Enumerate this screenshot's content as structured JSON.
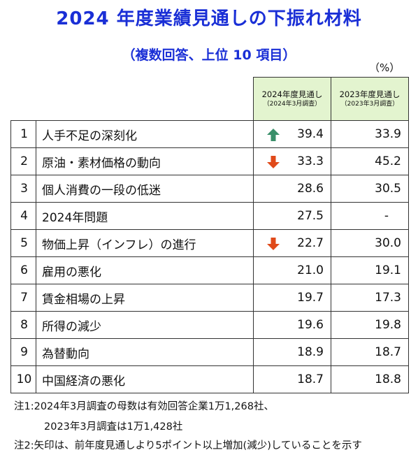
{
  "title": "2024 年度業績見通しの下振れ材料",
  "subtitle": "（複数回答、上位 10 項目）",
  "unit": "（%）",
  "colors": {
    "title": "#1a2fd6",
    "header_bg": "#e3f4cf",
    "up_arrow": "#3a8f6a",
    "down_arrow": "#e04a1a"
  },
  "chart_data": {
    "type": "table",
    "columns": [
      {
        "label": "2024年度見通し",
        "sub": "（2024年3月調査）"
      },
      {
        "label": "2023年度見通し",
        "sub": "（2023年3月調査）"
      }
    ],
    "rows": [
      {
        "rank": "1",
        "label": "人手不足の深刻化",
        "v2024": "39.4",
        "v2023": "33.9",
        "arrow": "up"
      },
      {
        "rank": "2",
        "label": "原油・素材価格の動向",
        "v2024": "33.3",
        "v2023": "45.2",
        "arrow": "down"
      },
      {
        "rank": "3",
        "label": "個人消費の一段の低迷",
        "v2024": "28.6",
        "v2023": "30.5",
        "arrow": ""
      },
      {
        "rank": "4",
        "label": "2024年問題",
        "v2024": "27.5",
        "v2023": "-",
        "arrow": ""
      },
      {
        "rank": "5",
        "label": "物価上昇（インフレ）の進行",
        "v2024": "22.7",
        "v2023": "30.0",
        "arrow": "down"
      },
      {
        "rank": "6",
        "label": "雇用の悪化",
        "v2024": "21.0",
        "v2023": "19.1",
        "arrow": ""
      },
      {
        "rank": "7",
        "label": "賃金相場の上昇",
        "v2024": "19.7",
        "v2023": "17.3",
        "arrow": ""
      },
      {
        "rank": "8",
        "label": "所得の減少",
        "v2024": "19.6",
        "v2023": "19.8",
        "arrow": ""
      },
      {
        "rank": "9",
        "label": "為替動向",
        "v2024": "18.9",
        "v2023": "18.7",
        "arrow": ""
      },
      {
        "rank": "10",
        "label": "中国経済の悪化",
        "v2024": "18.7",
        "v2023": "18.8",
        "arrow": ""
      }
    ]
  },
  "notes": {
    "note1_line1": "注1:2024年3月調査の母数は有効回答企業1万1,268社、",
    "note1_line2": "2023年3月調査は1万1,428社",
    "note2": "注2:矢印は、前年度見通しより5ポイント以上増加(減少)していることを示す"
  }
}
